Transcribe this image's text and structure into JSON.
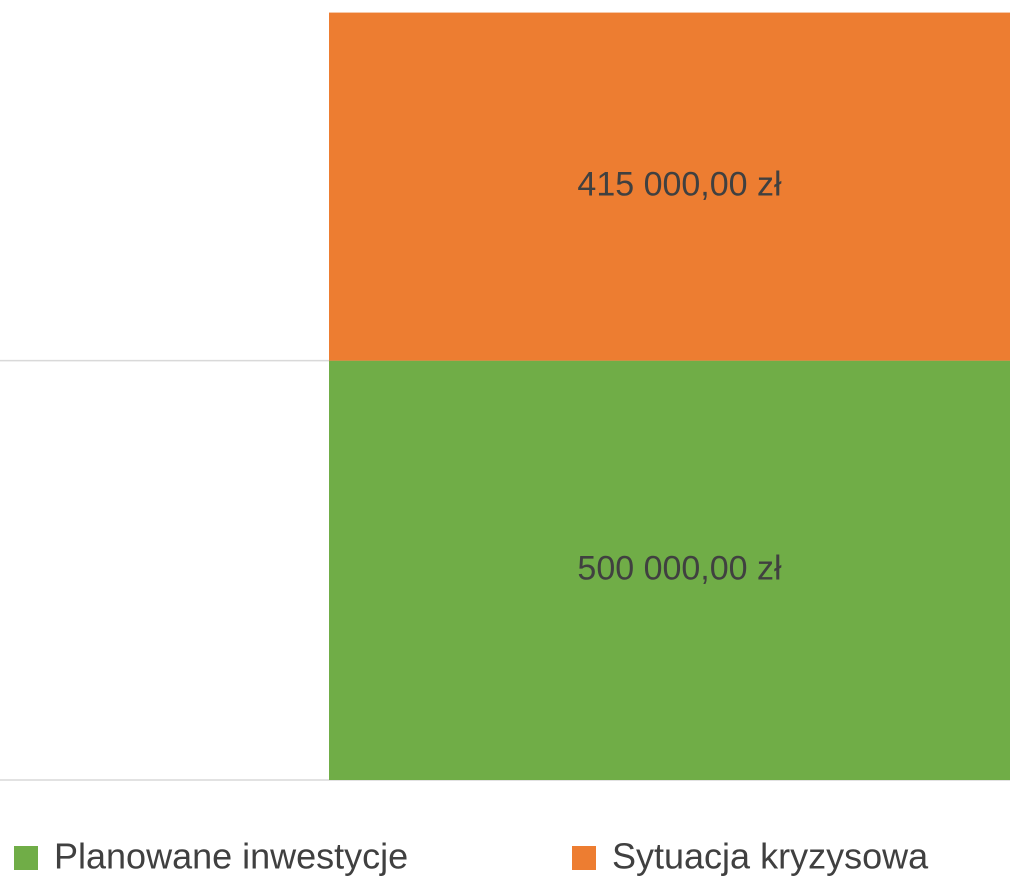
{
  "chart_data": {
    "type": "stacked_bar",
    "categories": [
      null
    ],
    "series": [
      {
        "name": "Planowane inwestycje",
        "color": "#70ad47",
        "values": [
          500000
        ],
        "value_labels": [
          "500 000,00 zł"
        ]
      },
      {
        "name": "Sytuacja kryzysowa",
        "color": "#ed7d31",
        "values": [
          415000
        ],
        "value_labels": [
          "415 000,00 zł"
        ]
      }
    ],
    "ylim": [
      0,
      930000
    ],
    "yticks": [
      0,
      500000
    ],
    "grid": true
  }
}
